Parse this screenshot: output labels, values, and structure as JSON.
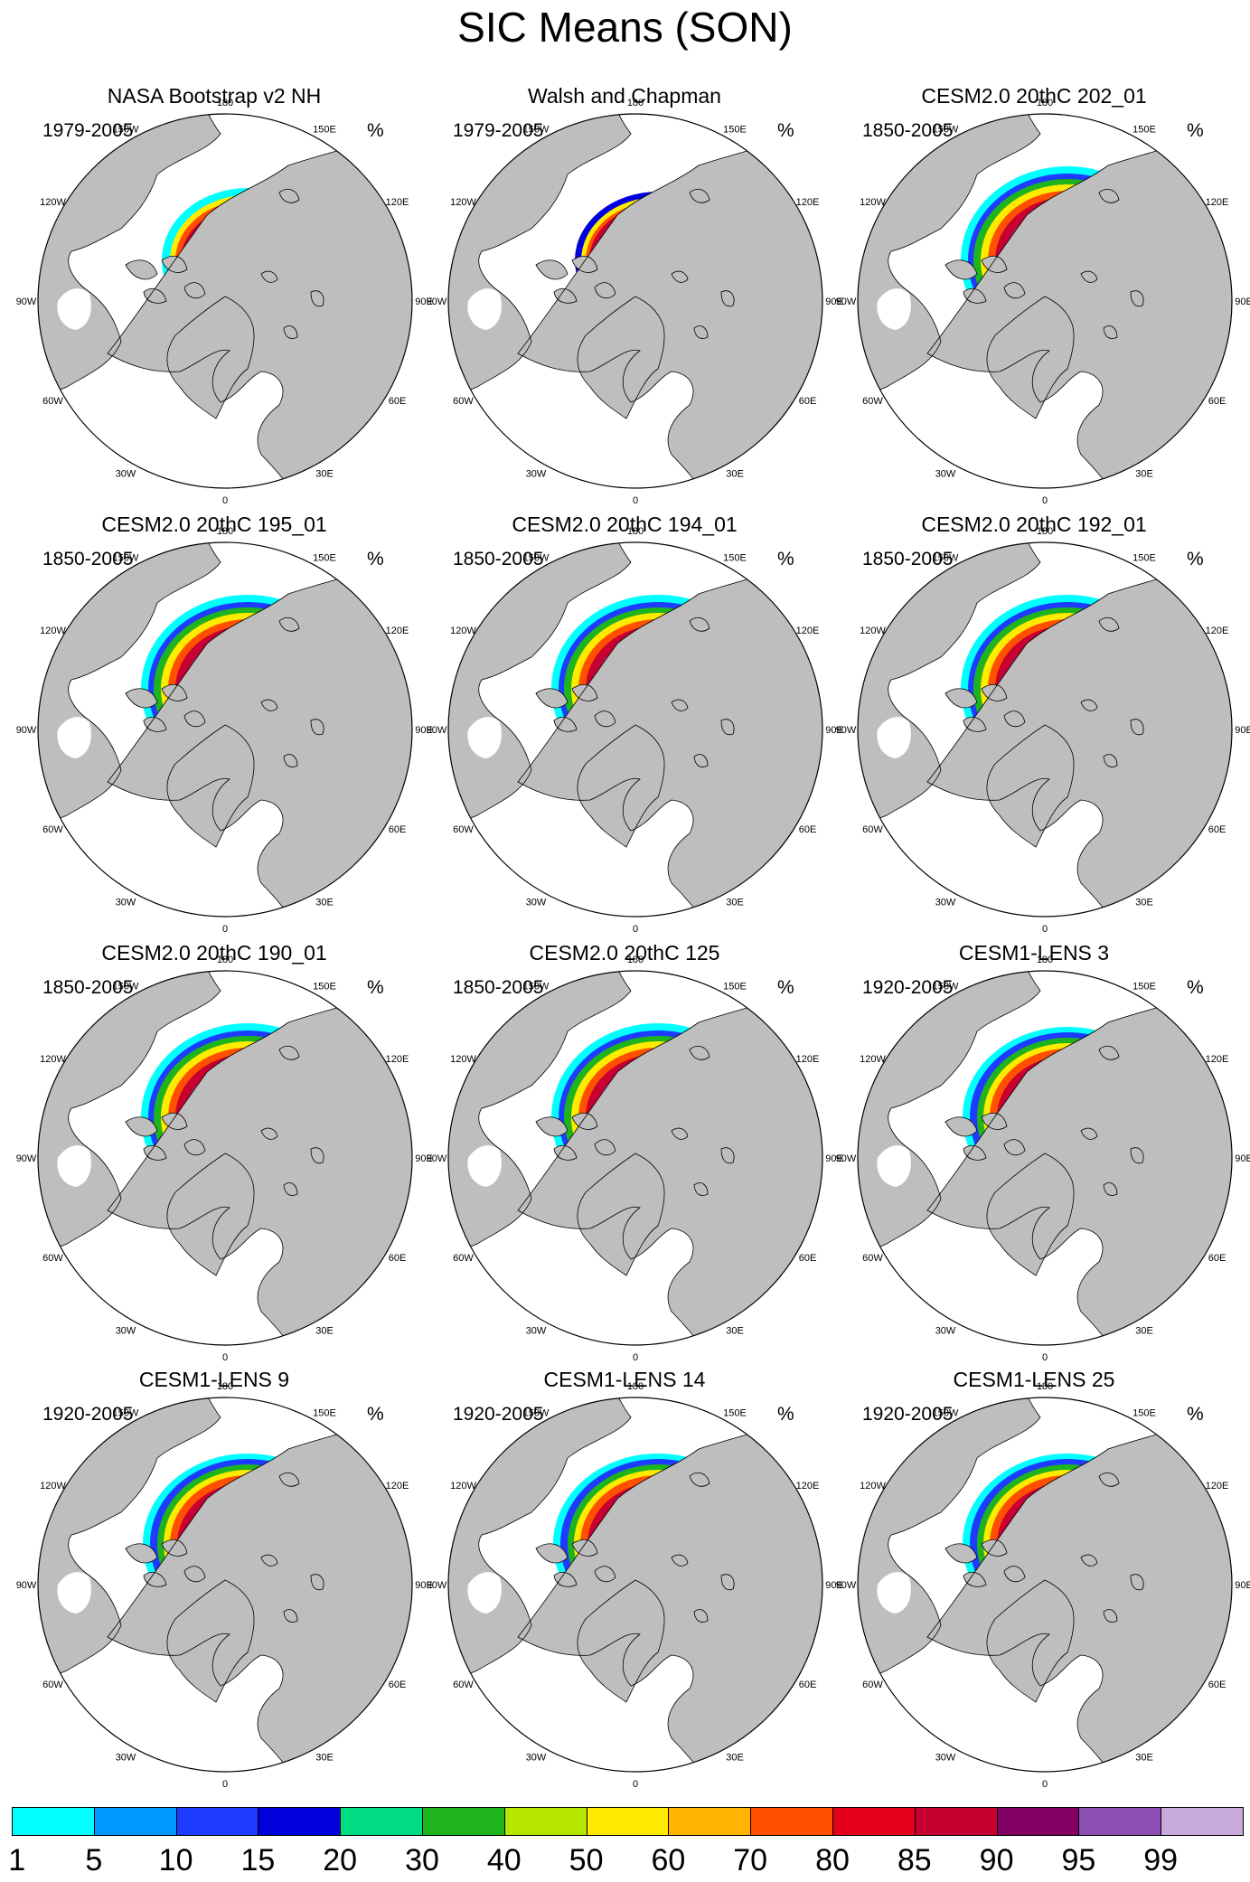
{
  "title": "SIC Means (SON)",
  "panels": [
    {
      "title": "NASA Bootstrap v2 NH",
      "period": "1979-2005",
      "units": "%",
      "style": "obs"
    },
    {
      "title": "Walsh and Chapman",
      "period": "1979-2005",
      "units": "%",
      "style": "wc"
    },
    {
      "title": "CESM2.0 20thC 202_01",
      "period": "1850-2005",
      "units": "%",
      "style": "cesm2"
    },
    {
      "title": "CESM2.0 20thC 195_01",
      "period": "1850-2005",
      "units": "%",
      "style": "cesm2"
    },
    {
      "title": "CESM2.0 20thC 194_01",
      "period": "1850-2005",
      "units": "%",
      "style": "cesm2"
    },
    {
      "title": "CESM2.0 20thC 192_01",
      "period": "1850-2005",
      "units": "%",
      "style": "cesm2"
    },
    {
      "title": "CESM2.0 20thC 190_01",
      "period": "1850-2005",
      "units": "%",
      "style": "cesm2"
    },
    {
      "title": "CESM2.0 20thC 125",
      "period": "1850-2005",
      "units": "%",
      "style": "cesm2"
    },
    {
      "title": "CESM1-LENS 3",
      "period": "1920-2005",
      "units": "%",
      "style": "lens"
    },
    {
      "title": "CESM1-LENS 9",
      "period": "1920-2005",
      "units": "%",
      "style": "lens"
    },
    {
      "title": "CESM1-LENS 14",
      "period": "1920-2005",
      "units": "%",
      "style": "lens"
    },
    {
      "title": "CESM1-LENS 25",
      "period": "1920-2005",
      "units": "%",
      "style": "lens"
    }
  ],
  "longitude_labels": [
    "180",
    "150E",
    "120E",
    "90E",
    "60E",
    "30E",
    "0",
    "30W",
    "60W",
    "90W",
    "120W",
    "150W"
  ],
  "colorbar": {
    "labels": [
      "1",
      "5",
      "10",
      "15",
      "20",
      "30",
      "40",
      "50",
      "60",
      "70",
      "80",
      "85",
      "90",
      "95",
      "99"
    ],
    "colors": [
      "#00ffff",
      "#0098ff",
      "#1e3cff",
      "#0000dc",
      "#00dc82",
      "#1eb41e",
      "#b4e600",
      "#ffeb00",
      "#ffb400",
      "#ff5000",
      "#e6001e",
      "#c80032",
      "#820064",
      "#8c50b4",
      "#c8aadc"
    ]
  },
  "colors": {
    "land": "#bebebe",
    "ocean": "#ffffff",
    "coast": "#000000"
  }
}
